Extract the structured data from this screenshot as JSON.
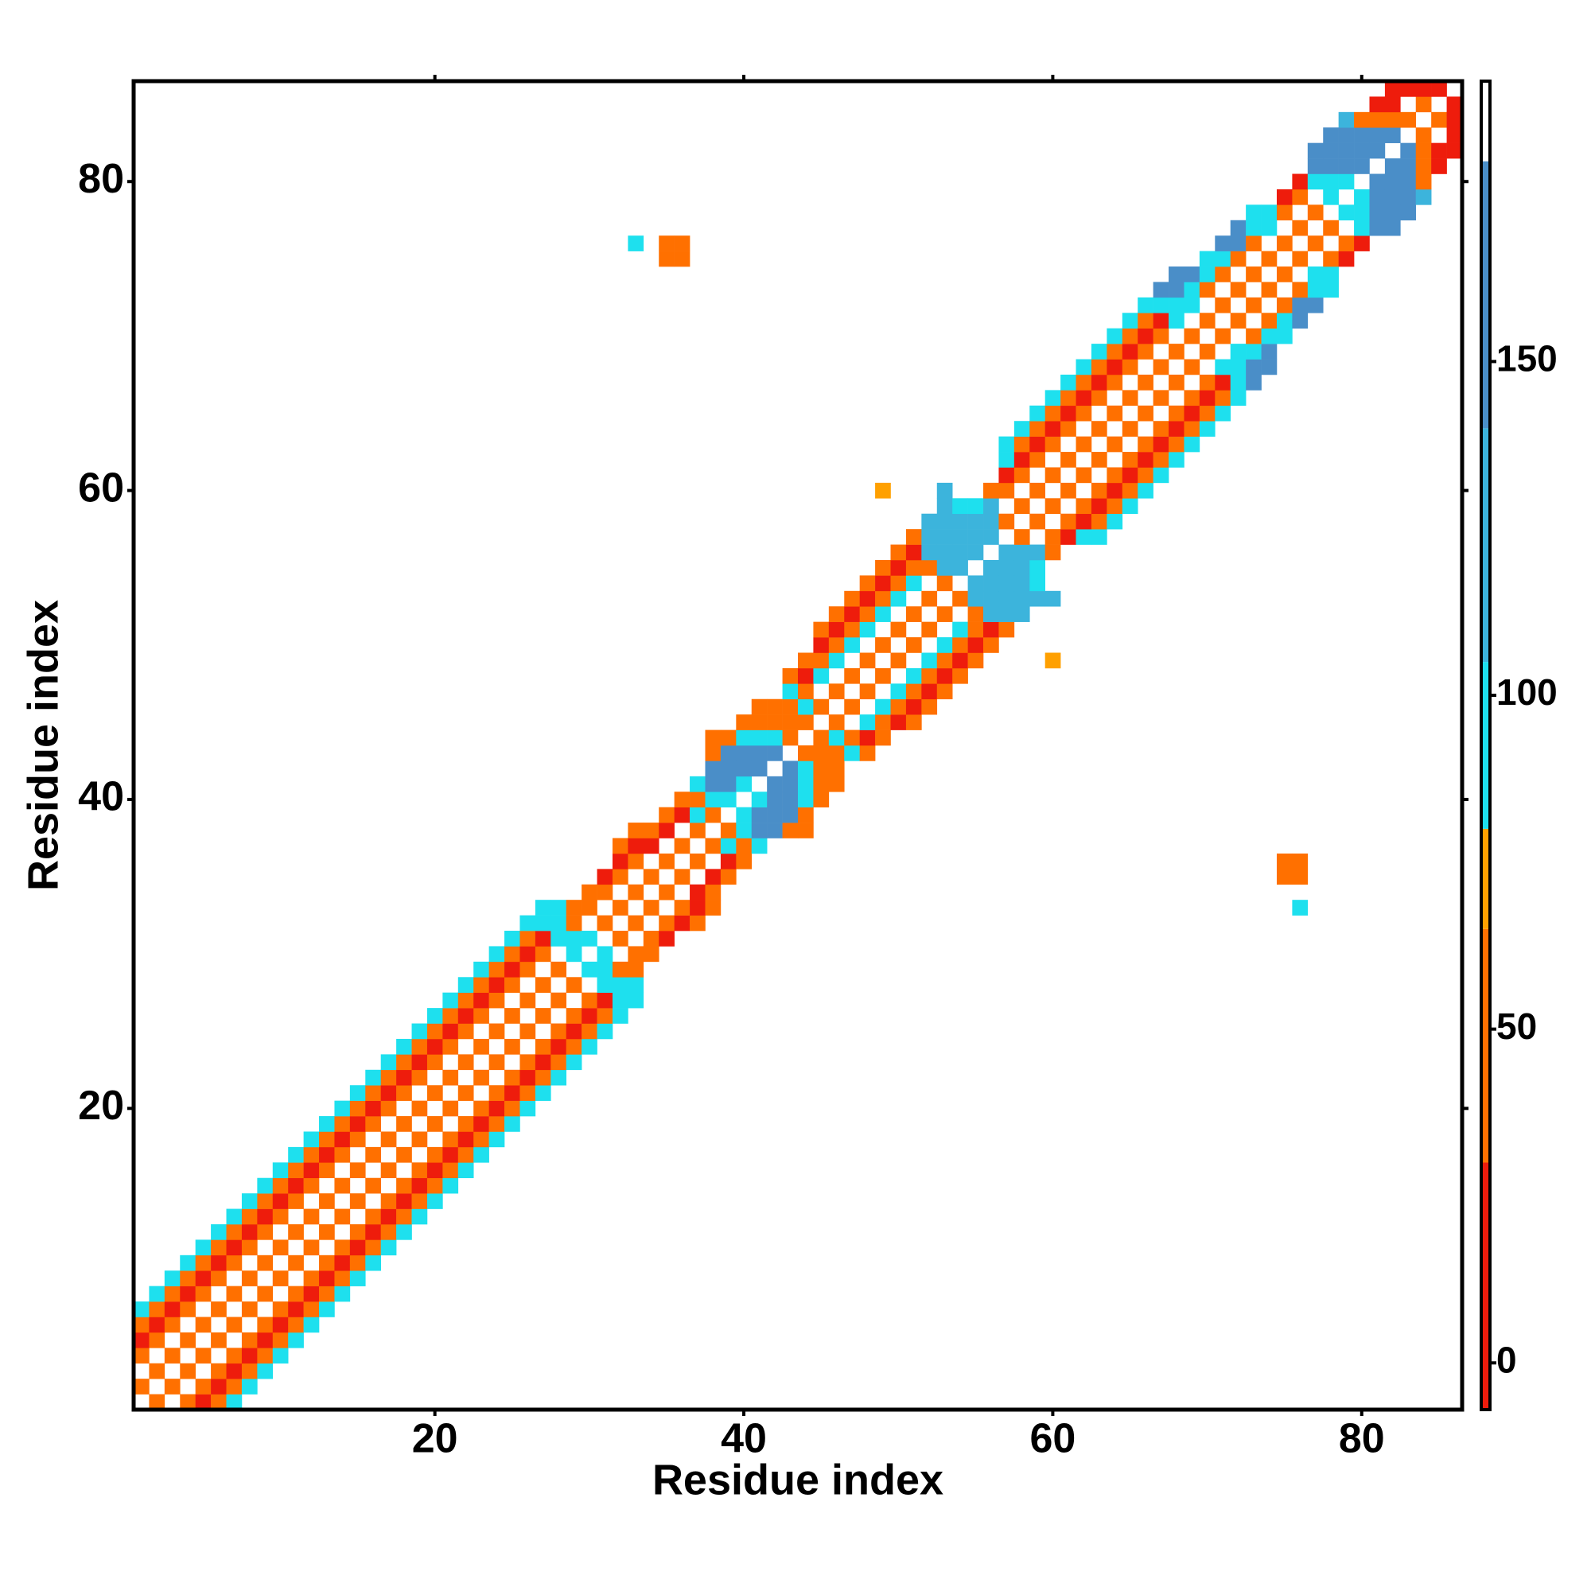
{
  "chart_data": {
    "type": "heatmap",
    "x_label": "Residue index",
    "y_label": "Residue index",
    "xlim": [
      0.5,
      86.5
    ],
    "ylim": [
      0.5,
      86.5
    ],
    "xticks": [
      20,
      40,
      60,
      80
    ],
    "yticks": [
      20,
      40,
      60,
      80
    ],
    "symmetric": true,
    "colorbar": {
      "lim": [
        -7,
        192
      ],
      "ticks": [
        0,
        50,
        100,
        150
      ],
      "stops": [
        {
          "from": -7,
          "to": 30,
          "color": "#ee1c0c"
        },
        {
          "from": 30,
          "to": 65,
          "color": "#ff7000"
        },
        {
          "from": 65,
          "to": 80,
          "color": "#ffa000"
        },
        {
          "from": 80,
          "to": 105,
          "color": "#1ee0ee"
        },
        {
          "from": 105,
          "to": 140,
          "color": "#3cb4dc"
        },
        {
          "from": 140,
          "to": 180,
          "color": "#4a8ec8"
        },
        {
          "from": 180,
          "to": 192,
          "color": "#ffffff"
        }
      ]
    },
    "columns": [
      {
        "x": 1,
        "y0": 2,
        "values": [
          50,
          null,
          55,
          15,
          45,
          100
        ]
      },
      {
        "x": 2,
        "y0": 3,
        "values": [
          50,
          null,
          55,
          15,
          45,
          100
        ]
      },
      {
        "x": 3,
        "y0": 4,
        "values": [
          50,
          null,
          55,
          15,
          45,
          100
        ]
      },
      {
        "x": 4,
        "y0": 5,
        "values": [
          50,
          null,
          55,
          15,
          45,
          100
        ]
      },
      {
        "x": 5,
        "y0": 6,
        "values": [
          50,
          null,
          55,
          15,
          45,
          100
        ]
      },
      {
        "x": 6,
        "y0": 7,
        "values": [
          50,
          null,
          55,
          15,
          45,
          100
        ]
      },
      {
        "x": 7,
        "y0": 8,
        "values": [
          50,
          null,
          55,
          15,
          45,
          100
        ]
      },
      {
        "x": 8,
        "y0": 9,
        "values": [
          50,
          null,
          55,
          15,
          45,
          100
        ]
      },
      {
        "x": 9,
        "y0": 10,
        "values": [
          50,
          null,
          55,
          15,
          45,
          100
        ]
      },
      {
        "x": 10,
        "y0": 11,
        "values": [
          50,
          null,
          55,
          15,
          45,
          100
        ]
      },
      {
        "x": 11,
        "y0": 12,
        "values": [
          50,
          null,
          55,
          15,
          45,
          100
        ]
      },
      {
        "x": 12,
        "y0": 13,
        "values": [
          50,
          null,
          55,
          15,
          45,
          100
        ]
      },
      {
        "x": 13,
        "y0": 14,
        "values": [
          50,
          null,
          55,
          15,
          45,
          100
        ]
      },
      {
        "x": 14,
        "y0": 15,
        "values": [
          50,
          null,
          55,
          15,
          45,
          100
        ]
      },
      {
        "x": 15,
        "y0": 16,
        "values": [
          50,
          null,
          55,
          15,
          45,
          100
        ]
      },
      {
        "x": 16,
        "y0": 17,
        "values": [
          50,
          null,
          55,
          15,
          45,
          100
        ]
      },
      {
        "x": 17,
        "y0": 18,
        "values": [
          50,
          null,
          55,
          15,
          45,
          100
        ]
      },
      {
        "x": 18,
        "y0": 19,
        "values": [
          50,
          null,
          55,
          15,
          45,
          100
        ]
      },
      {
        "x": 19,
        "y0": 20,
        "values": [
          50,
          null,
          55,
          15,
          45,
          100
        ]
      },
      {
        "x": 20,
        "y0": 21,
        "values": [
          50,
          null,
          55,
          15,
          45,
          100
        ]
      },
      {
        "x": 21,
        "y0": 22,
        "values": [
          50,
          null,
          55,
          15,
          45,
          100
        ]
      },
      {
        "x": 22,
        "y0": 23,
        "values": [
          50,
          null,
          55,
          15,
          45,
          100
        ]
      },
      {
        "x": 23,
        "y0": 24,
        "values": [
          50,
          null,
          55,
          15,
          45,
          100
        ]
      },
      {
        "x": 24,
        "y0": 25,
        "values": [
          50,
          null,
          55,
          15,
          45,
          100
        ]
      },
      {
        "x": 25,
        "y0": 26,
        "values": [
          50,
          null,
          55,
          15,
          45,
          100
        ]
      },
      {
        "x": 26,
        "y0": 27,
        "values": [
          50,
          null,
          55,
          15,
          45,
          100
        ]
      },
      {
        "x": 27,
        "y0": 28,
        "values": [
          50,
          null,
          55,
          15,
          100,
          100
        ]
      },
      {
        "x": 28,
        "y0": 29,
        "values": [
          50,
          null,
          100,
          100,
          100
        ]
      },
      {
        "x": 29,
        "y0": 30,
        "values": [
          100,
          100,
          50,
          60
        ]
      },
      {
        "x": 30,
        "y0": 31,
        "values": [
          100,
          null,
          50,
          60
        ]
      },
      {
        "x": 31,
        "y0": 32,
        "values": [
          50,
          null,
          55,
          15
        ]
      },
      {
        "x": 32,
        "y0": 33,
        "values": [
          50,
          null,
          55,
          15,
          50
        ]
      },
      {
        "x": 33,
        "y0": 34,
        "values": [
          50,
          null,
          55,
          15,
          50
        ]
      },
      {
        "x": 34,
        "y0": 35,
        "values": [
          50,
          null,
          20,
          55
        ]
      },
      {
        "x": 35,
        "y0": 36,
        "values": [
          50,
          null,
          20,
          55
        ]
      },
      {
        "x": 36,
        "y0": 37,
        "values": [
          50,
          null,
          15,
          65
        ]
      },
      {
        "x": 37,
        "y0": 38,
        "values": [
          50,
          100,
          60,
          100
        ]
      },
      {
        "x": 38,
        "y0": 39,
        "values": [
          50,
          100,
          145,
          145,
          60,
          65
        ]
      },
      {
        "x": 39,
        "y0": 40,
        "values": [
          100,
          145,
          145,
          145,
          65
        ]
      },
      {
        "x": 40,
        "y0": 41,
        "values": [
          100,
          145,
          145,
          100,
          50
        ]
      },
      {
        "x": 41,
        "y0": 42,
        "values": [
          145,
          145,
          100,
          50,
          55
        ]
      },
      {
        "x": 42,
        "y0": 43,
        "values": [
          145,
          100,
          50,
          55
        ]
      },
      {
        "x": 43,
        "y0": 44,
        "values": [
          65,
          50,
          55,
          100,
          55
        ]
      },
      {
        "x": 44,
        "y0": 45,
        "values": [
          50,
          100,
          55,
          15,
          45
        ]
      },
      {
        "x": 45,
        "y0": 46,
        "values": [
          50,
          null,
          100,
          55,
          15,
          45
        ]
      },
      {
        "x": 46,
        "y0": 47,
        "values": [
          50,
          null,
          100,
          55,
          15,
          45
        ]
      },
      {
        "x": 47,
        "y0": 48,
        "values": [
          50,
          null,
          100,
          55,
          15,
          45
        ]
      },
      {
        "x": 48,
        "y0": 49,
        "values": [
          50,
          null,
          100,
          55,
          15,
          45
        ]
      },
      {
        "x": 49,
        "y0": 50,
        "values": [
          50,
          null,
          100,
          55,
          15,
          45
        ]
      },
      {
        "x": 50,
        "y0": 51,
        "values": [
          50,
          null,
          100,
          55,
          15,
          45
        ]
      },
      {
        "x": 51,
        "y0": 52,
        "values": [
          50,
          null,
          100,
          55,
          15,
          45
        ]
      },
      {
        "x": 52,
        "y0": 53,
        "values": [
          50,
          null,
          55,
          140,
          140,
          140
        ]
      },
      {
        "x": 53,
        "y0": 54,
        "values": [
          50,
          140,
          140,
          140,
          140,
          140,
          140
        ]
      },
      {
        "x": 54,
        "y0": 55,
        "values": [
          140,
          140,
          140,
          140,
          100
        ]
      },
      {
        "x": 55,
        "y0": 56,
        "values": [
          140,
          140,
          140,
          100
        ]
      },
      {
        "x": 56,
        "y0": 57,
        "values": [
          140,
          140,
          140,
          50
        ]
      },
      {
        "x": 57,
        "y0": 58,
        "values": [
          50,
          null,
          55,
          15,
          100,
          100
        ]
      },
      {
        "x": 58,
        "y0": 59,
        "values": [
          50,
          null,
          55,
          15,
          45,
          100
        ]
      },
      {
        "x": 59,
        "y0": 60,
        "values": [
          50,
          null,
          55,
          15,
          45,
          100
        ]
      },
      {
        "x": 60,
        "y0": 61,
        "values": [
          50,
          null,
          55,
          15,
          45,
          100
        ]
      },
      {
        "x": 61,
        "y0": 62,
        "values": [
          50,
          null,
          55,
          15,
          45,
          100
        ]
      },
      {
        "x": 62,
        "y0": 63,
        "values": [
          50,
          null,
          55,
          15,
          45,
          100
        ]
      },
      {
        "x": 63,
        "y0": 64,
        "values": [
          50,
          null,
          55,
          15,
          45,
          100
        ]
      },
      {
        "x": 64,
        "y0": 65,
        "values": [
          50,
          null,
          55,
          15,
          45,
          100
        ]
      },
      {
        "x": 65,
        "y0": 66,
        "values": [
          50,
          null,
          55,
          15,
          45,
          100
        ]
      },
      {
        "x": 66,
        "y0": 67,
        "values": [
          50,
          null,
          55,
          15,
          45,
          100
        ]
      },
      {
        "x": 67,
        "y0": 68,
        "values": [
          50,
          null,
          55,
          15,
          100,
          145
        ]
      },
      {
        "x": 68,
        "y0": 69,
        "values": [
          50,
          null,
          100,
          100,
          145,
          145
        ]
      },
      {
        "x": 69,
        "y0": 70,
        "values": [
          50,
          null,
          100,
          100,
          145
        ]
      },
      {
        "x": 70,
        "y0": 71,
        "values": [
          50,
          null,
          55,
          100,
          100
        ]
      },
      {
        "x": 71,
        "y0": 72,
        "values": [
          50,
          null,
          55,
          100,
          145
        ]
      },
      {
        "x": 72,
        "y0": 73,
        "values": [
          50,
          null,
          55,
          145,
          145
        ]
      },
      {
        "x": 73,
        "y0": 74,
        "values": [
          50,
          null,
          55,
          100,
          100
        ]
      },
      {
        "x": 74,
        "y0": 75,
        "values": [
          50,
          null,
          100,
          100
        ]
      },
      {
        "x": 75,
        "y0": 76,
        "values": [
          50,
          null,
          55,
          15
        ]
      },
      {
        "x": 76,
        "y0": 77,
        "values": [
          50,
          null,
          55,
          15
        ]
      },
      {
        "x": 77,
        "y0": 78,
        "values": [
          50,
          null,
          100,
          145,
          145
        ]
      },
      {
        "x": 78,
        "y0": 79,
        "values": [
          100,
          100,
          145,
          145,
          145
        ]
      },
      {
        "x": 79,
        "y0": 80,
        "values": [
          100,
          145,
          145,
          145,
          140
        ]
      },
      {
        "x": 80,
        "y0": 81,
        "values": [
          145,
          145,
          145,
          60
        ]
      },
      {
        "x": 81,
        "y0": 82,
        "values": [
          145,
          145,
          60,
          15
        ]
      },
      {
        "x": 82,
        "y0": 83,
        "values": [
          145,
          50,
          15,
          15
        ]
      },
      {
        "x": 83,
        "y0": 84,
        "values": [
          50,
          null,
          15
        ]
      },
      {
        "x": 84,
        "y0": 85,
        "values": [
          50,
          15
        ]
      },
      {
        "x": 85,
        "y0": 86,
        "values": [
          15
        ]
      },
      {
        "x": 33,
        "y0": 76,
        "values": [
          100
        ]
      },
      {
        "x": 35,
        "y0": 75,
        "values": [
          55,
          55
        ]
      },
      {
        "x": 36,
        "y0": 75,
        "values": [
          55,
          55
        ]
      },
      {
        "x": 49,
        "y0": 60,
        "values": [
          70
        ]
      }
    ]
  }
}
